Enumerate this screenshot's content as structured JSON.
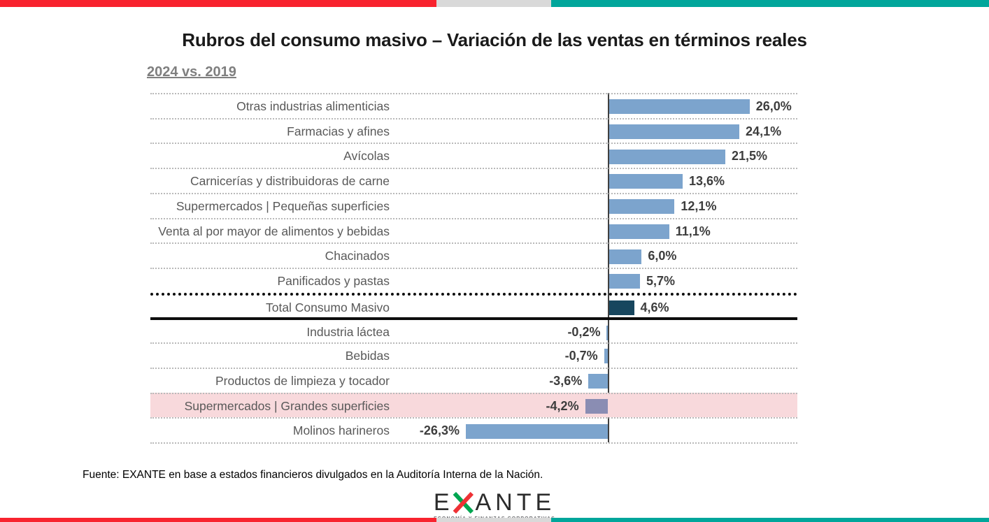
{
  "header": {
    "title": "Rubros del consumo masivo – Variación de las ventas en términos reales",
    "subtitle": "2024 vs. 2019"
  },
  "footer": {
    "source_note": "Fuente: EXANTE en base a estados financieros divulgados en la Auditoría Interna de la Nación.",
    "logo_text_left": "E",
    "logo_text_right": "ANTE",
    "logo_tagline": "ECONOMÍA Y FINANZAS CORPORATIVAS"
  },
  "colors": {
    "accent_red": "#F8232E",
    "accent_gray": "#D9D9D9",
    "accent_teal": "#00A69B",
    "bar_blue": "#7CA4CD",
    "bar_total_navy": "#17465E",
    "bar_highlight_purple": "#8A8DB3",
    "highlight_row_pink": "#F8D9DC",
    "subtitle_gray": "#7F7F7F",
    "logo_green": "#00A651",
    "logo_red": "#EE3135"
  },
  "chart_data": {
    "type": "bar",
    "orientation": "horizontal",
    "title": "Rubros del consumo masivo – Variación de las ventas en términos reales",
    "subtitle": "2024 vs. 2019",
    "unit": "%",
    "baseline": 0,
    "grid": "dotted-row-separators",
    "legend": "none",
    "categories": [
      "Otras industrias alimenticias",
      "Farmacias y afines",
      "Avícolas",
      "Carnicerías y distribuidoras de carne",
      "Supermercados | Pequeñas superficies",
      "Venta al por mayor de alimentos y bebidas",
      "Chacinados",
      "Panificados y pastas",
      "Total Consumo Masivo",
      "Industria láctea",
      "Bebidas",
      "Productos de limpieza y tocador",
      "Supermercados | Grandes superficies",
      "Molinos harineros"
    ],
    "values": [
      26.0,
      24.1,
      21.5,
      13.6,
      12.1,
      11.1,
      6.0,
      5.7,
      4.6,
      -0.2,
      -0.7,
      -3.6,
      -4.2,
      -26.3
    ],
    "value_labels": [
      "26,0%",
      "24,1%",
      "21,5%",
      "13,6%",
      "12,1%",
      "11,1%",
      "6,0%",
      "5,7%",
      "4,6%",
      "-0,2%",
      "-0,7%",
      "-3,6%",
      "-4,2%",
      "-26,3%"
    ],
    "total_index": 8,
    "total_category": "Total Consumo Masivo",
    "highlighted_index": 12,
    "highlighted_category": "Supermercados | Grandes superficies"
  }
}
